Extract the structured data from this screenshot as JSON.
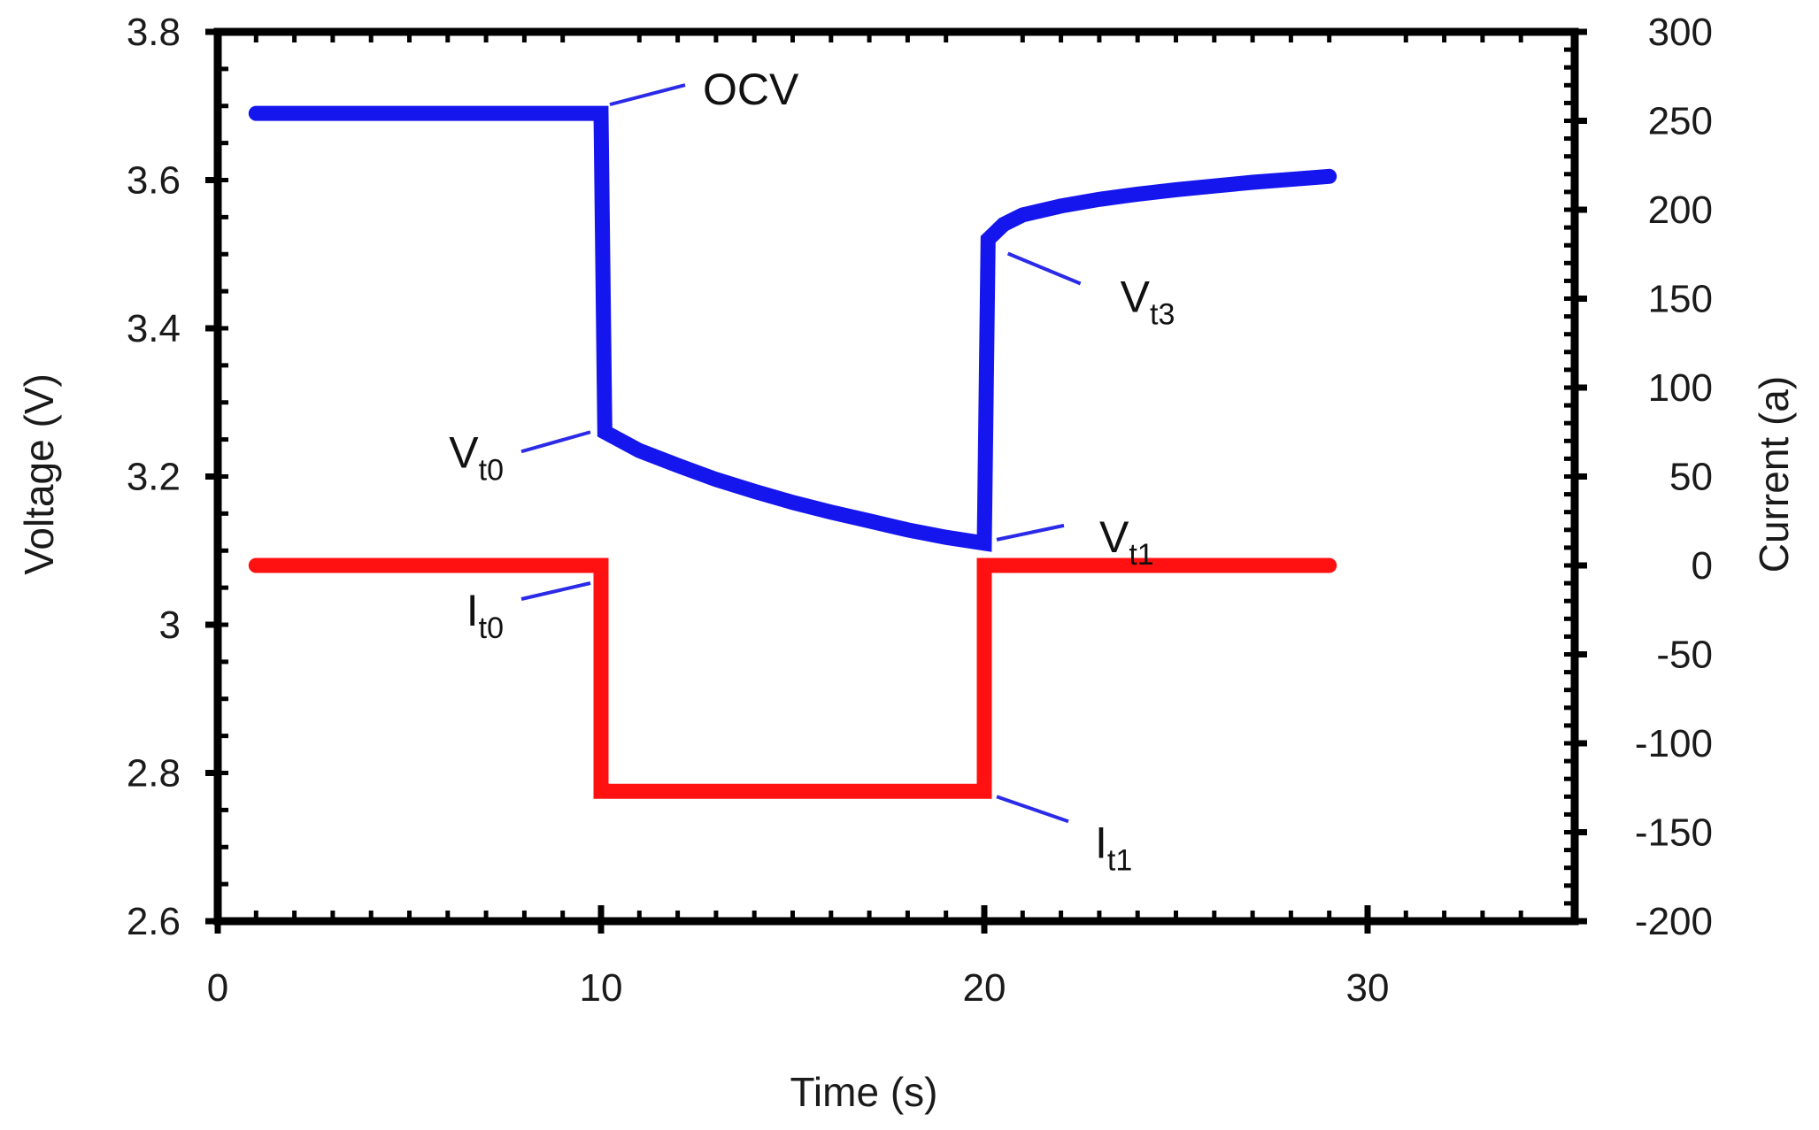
{
  "chart_data": {
    "type": "line",
    "title": "",
    "xlabel": "Time (s)",
    "ylabel": "Voltage (V)",
    "y2label": "Current (a)",
    "xlim": [
      0,
      35
    ],
    "ylim": [
      2.6,
      3.8
    ],
    "y2lim": [
      -200,
      300
    ],
    "x_ticks": [
      "0",
      "10",
      "20",
      "30"
    ],
    "x_tick_values": [
      0,
      10,
      20,
      30
    ],
    "y_ticks": [
      "2.6",
      "2.8",
      "3",
      "3.2",
      "3.4",
      "3.6",
      "3.8"
    ],
    "y_tick_values": [
      2.6,
      2.8,
      3.0,
      3.2,
      3.4,
      3.6,
      3.8
    ],
    "y2_ticks": [
      "-200",
      "-150",
      "-100",
      "-50",
      "0",
      "50",
      "100",
      "150",
      "200",
      "250",
      "300"
    ],
    "y2_tick_values": [
      -200,
      -150,
      -100,
      -50,
      0,
      50,
      100,
      150,
      200,
      250,
      300
    ],
    "grid": false,
    "series": [
      {
        "name": "Voltage",
        "axis": "left",
        "color": "#1515ee",
        "points": [
          [
            1,
            3.69
          ],
          [
            10,
            3.69
          ],
          [
            10.1,
            3.26
          ],
          [
            11,
            3.235
          ],
          [
            12,
            3.215
          ],
          [
            13,
            3.196
          ],
          [
            14,
            3.18
          ],
          [
            15,
            3.165
          ],
          [
            16,
            3.152
          ],
          [
            17,
            3.14
          ],
          [
            18,
            3.128
          ],
          [
            19,
            3.118
          ],
          [
            20,
            3.11
          ],
          [
            20.1,
            3.52
          ],
          [
            20.5,
            3.54
          ],
          [
            21,
            3.553
          ],
          [
            22,
            3.565
          ],
          [
            23,
            3.574
          ],
          [
            24,
            3.581
          ],
          [
            25,
            3.587
          ],
          [
            26,
            3.592
          ],
          [
            27,
            3.597
          ],
          [
            28,
            3.601
          ],
          [
            29,
            3.605
          ]
        ]
      },
      {
        "name": "Current",
        "axis": "right",
        "color": "#ff1111",
        "points": [
          [
            1,
            0
          ],
          [
            10,
            0
          ],
          [
            10,
            -127
          ],
          [
            20,
            -127
          ],
          [
            20,
            0
          ],
          [
            29,
            0
          ]
        ]
      }
    ],
    "annotations": [
      {
        "label": "OCV",
        "sub": "",
        "target": [
          10,
          3.69
        ],
        "axis": "left"
      },
      {
        "label": "V",
        "sub": "t0",
        "target": [
          10,
          3.26
        ],
        "axis": "left"
      },
      {
        "label": "V",
        "sub": "t1",
        "target": [
          20,
          3.11
        ],
        "axis": "left"
      },
      {
        "label": "V",
        "sub": "t3",
        "target": [
          20.2,
          3.52
        ],
        "axis": "left"
      },
      {
        "label": "I",
        "sub": "t0",
        "target": [
          10,
          0
        ],
        "axis": "right"
      },
      {
        "label": "I",
        "sub": "t1",
        "target": [
          20,
          -127
        ],
        "axis": "right"
      }
    ]
  }
}
